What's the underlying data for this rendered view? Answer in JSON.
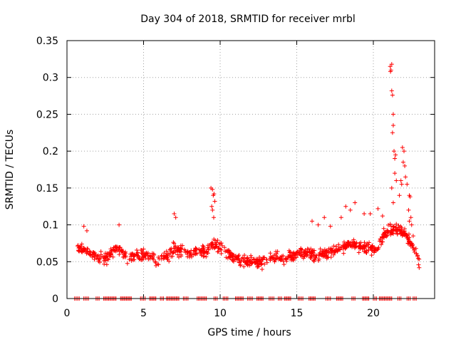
{
  "chart_data": {
    "type": "scatter",
    "title": "Day 304 of 2018, SRMTID for receiver mrbl",
    "xlabel": "GPS time / hours",
    "ylabel": "SRMTID / TECUs",
    "xlim": [
      0,
      24
    ],
    "ylim": [
      0,
      0.35
    ],
    "xticks": [
      0,
      5,
      10,
      15,
      20
    ],
    "xtick_labels": [
      "0",
      "5",
      "10",
      "15",
      "20"
    ],
    "yticks": [
      0,
      0.05,
      0.1,
      0.15,
      0.2,
      0.25,
      0.3,
      0.35
    ],
    "ytick_labels": [
      "0",
      "0.05",
      "0.1",
      "0.15",
      "0.2",
      "0.25",
      "0.3",
      "0.35"
    ],
    "grid": true,
    "marker": "+",
    "series": [
      {
        "name": "SRMTID",
        "color": "#ff0000",
        "trend": [
          [
            0.7,
            0.072
          ],
          [
            1.2,
            0.065
          ],
          [
            1.8,
            0.058
          ],
          [
            2.5,
            0.055
          ],
          [
            3.3,
            0.07
          ],
          [
            4.0,
            0.055
          ],
          [
            5.0,
            0.06
          ],
          [
            6.0,
            0.05
          ],
          [
            7.0,
            0.068
          ],
          [
            8.0,
            0.062
          ],
          [
            9.0,
            0.065
          ],
          [
            9.6,
            0.075
          ],
          [
            10.5,
            0.06
          ],
          [
            11.5,
            0.05
          ],
          [
            12.5,
            0.05
          ],
          [
            13.5,
            0.055
          ],
          [
            14.5,
            0.055
          ],
          [
            15.5,
            0.062
          ],
          [
            16.5,
            0.058
          ],
          [
            17.5,
            0.065
          ],
          [
            18.5,
            0.075
          ],
          [
            19.5,
            0.07
          ],
          [
            20.2,
            0.065
          ],
          [
            20.8,
            0.09
          ],
          [
            21.4,
            0.095
          ],
          [
            22.0,
            0.09
          ],
          [
            22.6,
            0.07
          ],
          [
            23.0,
            0.05
          ]
        ],
        "spikes": [
          [
            9.4,
            0.15
          ],
          [
            9.5,
            0.148
          ],
          [
            9.55,
            0.14
          ],
          [
            9.6,
            0.142
          ],
          [
            9.65,
            0.132
          ],
          [
            9.5,
            0.12
          ],
          [
            9.45,
            0.125
          ],
          [
            9.58,
            0.11
          ],
          [
            21.1,
            0.315
          ],
          [
            21.15,
            0.31
          ],
          [
            21.2,
            0.318
          ],
          [
            21.12,
            0.308
          ],
          [
            21.2,
            0.282
          ],
          [
            21.25,
            0.276
          ],
          [
            21.3,
            0.25
          ],
          [
            21.3,
            0.235
          ],
          [
            21.25,
            0.225
          ],
          [
            21.35,
            0.2
          ],
          [
            21.4,
            0.19
          ],
          [
            21.45,
            0.195
          ],
          [
            21.4,
            0.17
          ],
          [
            21.5,
            0.16
          ],
          [
            21.2,
            0.15
          ],
          [
            21.3,
            0.13
          ],
          [
            21.9,
            0.205
          ],
          [
            22.0,
            0.2
          ],
          [
            21.95,
            0.185
          ],
          [
            22.05,
            0.18
          ],
          [
            21.8,
            0.16
          ],
          [
            21.85,
            0.155
          ],
          [
            22.1,
            0.165
          ],
          [
            21.7,
            0.14
          ],
          [
            22.2,
            0.155
          ],
          [
            22.35,
            0.14
          ],
          [
            22.4,
            0.138
          ],
          [
            22.3,
            0.12
          ],
          [
            22.45,
            0.11
          ],
          [
            22.5,
            0.1
          ],
          [
            22.35,
            0.105
          ],
          [
            22.6,
            0.085
          ],
          [
            18.2,
            0.125
          ],
          [
            18.5,
            0.12
          ],
          [
            18.8,
            0.13
          ],
          [
            17.9,
            0.11
          ],
          [
            19.4,
            0.115
          ],
          [
            19.8,
            0.115
          ],
          [
            20.3,
            0.122
          ],
          [
            20.6,
            0.112
          ],
          [
            7.0,
            0.115
          ],
          [
            7.1,
            0.11
          ],
          [
            3.4,
            0.1
          ],
          [
            16.0,
            0.105
          ],
          [
            16.4,
            0.1
          ],
          [
            1.1,
            0.098
          ],
          [
            1.3,
            0.092
          ],
          [
            16.8,
            0.11
          ],
          [
            17.2,
            0.098
          ]
        ],
        "zero_intervals": [
          [
            0.5,
            0.8
          ],
          [
            1.1,
            1.4
          ],
          [
            1.9,
            2.1
          ],
          [
            2.4,
            3.2
          ],
          [
            3.5,
            4.2
          ],
          [
            4.8,
            5.1
          ],
          [
            5.4,
            5.8
          ],
          [
            6.1,
            6.3
          ],
          [
            6.5,
            7.3
          ],
          [
            7.6,
            7.9
          ],
          [
            8.5,
            9.1
          ],
          [
            9.6,
            9.8
          ],
          [
            10.2,
            10.5
          ],
          [
            11.0,
            11.5
          ],
          [
            11.8,
            12.1
          ],
          [
            12.4,
            12.8
          ],
          [
            13.2,
            13.5
          ],
          [
            13.8,
            14.0
          ],
          [
            14.2,
            14.6
          ],
          [
            15.1,
            15.4
          ],
          [
            15.8,
            16.2
          ],
          [
            16.9,
            17.2
          ],
          [
            17.6,
            18.0
          ],
          [
            18.6,
            18.8
          ],
          [
            19.3,
            19.7
          ],
          [
            20.0,
            20.2
          ],
          [
            20.4,
            21.2
          ],
          [
            21.6,
            21.8
          ],
          [
            22.2,
            22.4
          ],
          [
            22.6,
            22.8
          ]
        ]
      }
    ]
  }
}
